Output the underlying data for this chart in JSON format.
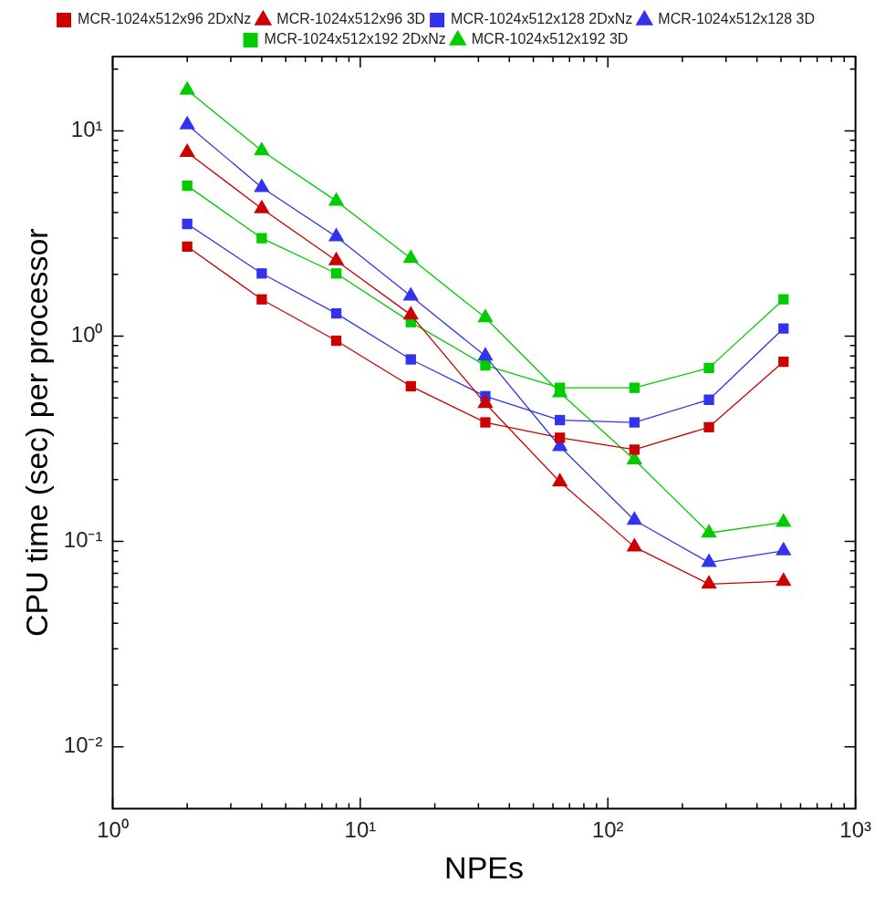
{
  "chart_data": {
    "type": "line",
    "xlabel": "NPEs",
    "ylabel": "CPU time (sec) per processor",
    "log": "xy",
    "grid": false,
    "legend": "top",
    "line_style": "solid",
    "xlim": [
      1,
      1000
    ],
    "ylim": [
      0.005,
      23
    ],
    "xticks": [
      {
        "value": 1,
        "label": "10⁰"
      },
      {
        "value": 2,
        "label": null
      },
      {
        "value": 3,
        "label": null
      },
      {
        "value": 4,
        "label": null
      },
      {
        "value": 5,
        "label": null
      },
      {
        "value": 6,
        "label": null
      },
      {
        "value": 7,
        "label": null
      },
      {
        "value": 8,
        "label": null
      },
      {
        "value": 9,
        "label": null
      },
      {
        "value": 10,
        "label": "10¹"
      },
      {
        "value": 20,
        "label": null
      },
      {
        "value": 30,
        "label": null
      },
      {
        "value": 40,
        "label": null
      },
      {
        "value": 50,
        "label": null
      },
      {
        "value": 60,
        "label": null
      },
      {
        "value": 70,
        "label": null
      },
      {
        "value": 80,
        "label": null
      },
      {
        "value": 90,
        "label": null
      },
      {
        "value": 100,
        "label": "10²"
      },
      {
        "value": 200,
        "label": null
      },
      {
        "value": 300,
        "label": null
      },
      {
        "value": 400,
        "label": null
      },
      {
        "value": 500,
        "label": null
      },
      {
        "value": 600,
        "label": null
      },
      {
        "value": 700,
        "label": null
      },
      {
        "value": 800,
        "label": null
      },
      {
        "value": 900,
        "label": null
      },
      {
        "value": 1000,
        "label": "10³"
      }
    ],
    "yticks": [
      {
        "value": 0.01,
        "label": "10⁻²"
      },
      {
        "value": 0.02,
        "label": null
      },
      {
        "value": 0.03,
        "label": null
      },
      {
        "value": 0.04,
        "label": null
      },
      {
        "value": 0.05,
        "label": null
      },
      {
        "value": 0.06,
        "label": null
      },
      {
        "value": 0.07,
        "label": null
      },
      {
        "value": 0.08,
        "label": null
      },
      {
        "value": 0.09,
        "label": null
      },
      {
        "value": 0.1,
        "label": "10⁻¹"
      },
      {
        "value": 0.2,
        "label": null
      },
      {
        "value": 0.3,
        "label": null
      },
      {
        "value": 0.4,
        "label": null
      },
      {
        "value": 0.5,
        "label": null
      },
      {
        "value": 0.6,
        "label": null
      },
      {
        "value": 0.7,
        "label": null
      },
      {
        "value": 0.8,
        "label": null
      },
      {
        "value": 0.9,
        "label": null
      },
      {
        "value": 1,
        "label": "10⁰"
      },
      {
        "value": 2,
        "label": null
      },
      {
        "value": 3,
        "label": null
      },
      {
        "value": 4,
        "label": null
      },
      {
        "value": 5,
        "label": null
      },
      {
        "value": 6,
        "label": null
      },
      {
        "value": 7,
        "label": null
      },
      {
        "value": 8,
        "label": null
      },
      {
        "value": 9,
        "label": null
      },
      {
        "value": 10,
        "label": "10¹"
      },
      {
        "value": 20,
        "label": null
      }
    ],
    "x": [
      2,
      4,
      8,
      16,
      32,
      64,
      128,
      256,
      512
    ],
    "series": [
      {
        "name": "MCR-1024x512x96 2DxNz",
        "color": "#cc0000",
        "marker": "square",
        "values": [
          2.73,
          1.51,
          0.95,
          0.57,
          0.38,
          0.32,
          0.28,
          0.36,
          0.75
        ]
      },
      {
        "name": "MCR-1024x512x96 3D",
        "color": "#cc0000",
        "marker": "triangle",
        "values": [
          7.85,
          4.18,
          2.33,
          1.27,
          0.47,
          0.195,
          0.094,
          0.062,
          0.064
        ]
      },
      {
        "name": "MCR-1024x512x128 2DxNz",
        "color": "#3333ee",
        "marker": "square",
        "values": [
          3.52,
          2.02,
          1.29,
          0.77,
          0.51,
          0.39,
          0.38,
          0.49,
          1.09
        ]
      },
      {
        "name": "MCR-1024x512x128 3D",
        "color": "#3333ee",
        "marker": "triangle",
        "values": [
          10.7,
          5.3,
          3.05,
          1.57,
          0.8,
          0.29,
          0.127,
          0.079,
          0.09
        ]
      },
      {
        "name": "MCR-1024x512x192 2DxNz",
        "color": "#00cc00",
        "marker": "square",
        "values": [
          5.4,
          3.0,
          2.02,
          1.17,
          0.72,
          0.56,
          0.56,
          0.7,
          1.51
        ]
      },
      {
        "name": "MCR-1024x512x192 3D",
        "color": "#00cc00",
        "marker": "triangle",
        "values": [
          15.8,
          8.0,
          4.55,
          2.39,
          1.23,
          0.53,
          0.25,
          0.11,
          0.124
        ]
      }
    ]
  }
}
